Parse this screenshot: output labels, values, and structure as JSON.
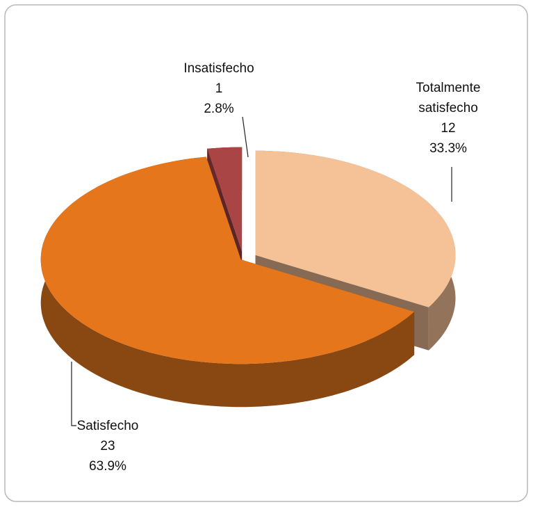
{
  "chart_data": {
    "type": "pie3d",
    "categories": [
      "Totalmente satisfecho",
      "Satisfecho",
      "Insatisfecho"
    ],
    "values": [
      12,
      23,
      1
    ],
    "percent_labels": [
      "33.3%",
      "63.9%",
      "2.8%"
    ],
    "colors": [
      "#f5c196",
      "#e5761c",
      "#a94545"
    ]
  }
}
